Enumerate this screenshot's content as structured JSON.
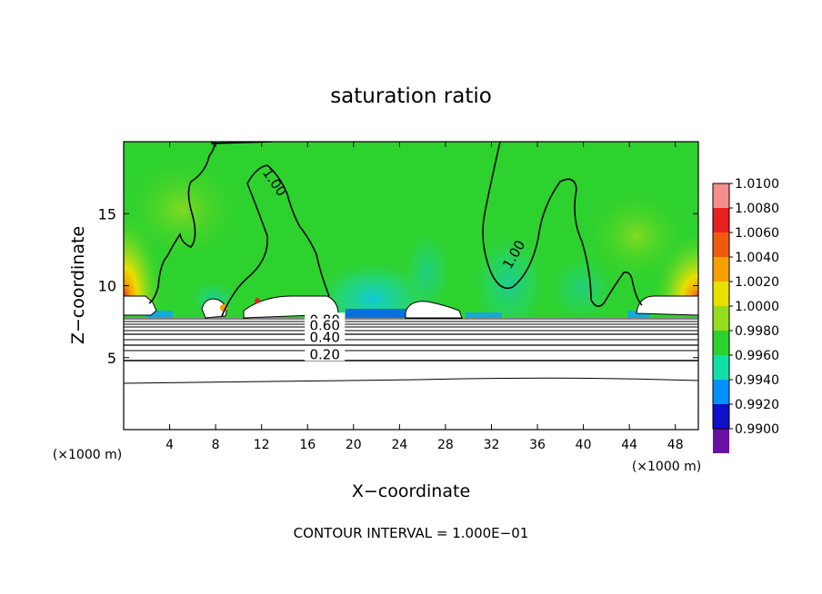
{
  "chart_data": {
    "type": "heatmap",
    "title": "saturation ratio",
    "xlabel": "X−coordinate",
    "ylabel": "Z−coordinate",
    "x_unit_left": "(×1000 m)",
    "x_unit_right": "(×1000 m)",
    "xlim": [
      0,
      50
    ],
    "ylim": [
      0,
      20
    ],
    "x_ticks": [
      4,
      8,
      12,
      16,
      20,
      24,
      28,
      32,
      36,
      40,
      44,
      48
    ],
    "y_ticks": [
      5,
      10,
      15
    ],
    "footer": "CONTOUR INTERVAL = 1.000E−01",
    "colorbar": {
      "labels": [
        "1.0100",
        "1.0080",
        "1.0060",
        "1.0040",
        "1.0020",
        "1.0000",
        "0.9980",
        "0.9960",
        "0.9940",
        "0.9920",
        "0.9900"
      ],
      "colors": [
        "#f58f8f",
        "#e82020",
        "#f05a10",
        "#f5a000",
        "#e8e000",
        "#96dc1e",
        "#2ed22e",
        "#10e0a8",
        "#0090ff",
        "#1010c8",
        "#6a10a0"
      ]
    },
    "contours": [
      {
        "label": "1.00",
        "x": 12.8,
        "y": 17.0
      },
      {
        "label": "1.00",
        "x": 34.3,
        "y": 12.0
      },
      {
        "label": "0.80",
        "x": 17.5,
        "y": 7.3
      },
      {
        "label": "0.60",
        "x": 17.5,
        "y": 6.9
      },
      {
        "label": "0.40",
        "x": 17.5,
        "y": 6.1
      },
      {
        "label": "0.20",
        "x": 17.5,
        "y": 4.9
      }
    ],
    "grid": false
  }
}
